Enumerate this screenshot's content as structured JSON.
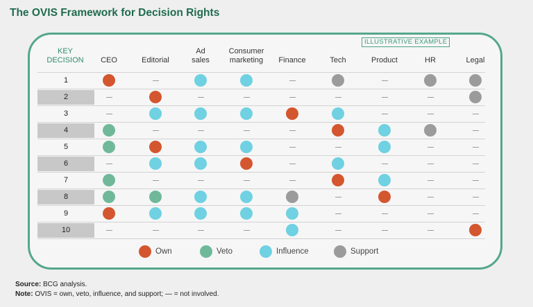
{
  "title": "The OVIS Framework for Decision Rights",
  "tag": "ILLUSTRATIVE EXAMPLE",
  "chart_data": {
    "type": "table",
    "row_header": [
      "KEY",
      "DECISION"
    ],
    "columns": [
      [
        "CEO"
      ],
      [
        "Editorial"
      ],
      [
        "Ad",
        "sales"
      ],
      [
        "Consumer",
        "marketing"
      ],
      [
        "Finance"
      ],
      [
        "Tech"
      ],
      [
        "Product"
      ],
      [
        "HR"
      ],
      [
        "Legal"
      ]
    ],
    "rows": [
      {
        "label": "1",
        "cells": [
          "own",
          "-",
          "influence",
          "influence",
          "-",
          "support",
          "-",
          "support",
          "support"
        ]
      },
      {
        "label": "2",
        "cells": [
          "-",
          "own",
          "-",
          "-",
          "-",
          "-",
          "-",
          "-",
          "support"
        ]
      },
      {
        "label": "3",
        "cells": [
          "-",
          "influence",
          "influence",
          "influence",
          "own",
          "influence",
          "-",
          "-",
          "-"
        ]
      },
      {
        "label": "4",
        "cells": [
          "veto",
          "-",
          "-",
          "-",
          "-",
          "own",
          "influence",
          "support",
          "-"
        ]
      },
      {
        "label": "5",
        "cells": [
          "veto",
          "own",
          "influence",
          "influence",
          "-",
          "-",
          "influence",
          "-",
          "-"
        ]
      },
      {
        "label": "6",
        "cells": [
          "-",
          "influence",
          "influence",
          "own",
          "-",
          "influence",
          "-",
          "-",
          "-"
        ]
      },
      {
        "label": "7",
        "cells": [
          "veto",
          "-",
          "-",
          "-",
          "-",
          "own",
          "influence",
          "-",
          "-"
        ]
      },
      {
        "label": "8",
        "cells": [
          "veto",
          "veto",
          "influence",
          "influence",
          "support",
          "-",
          "own",
          "-",
          "-"
        ]
      },
      {
        "label": "9",
        "cells": [
          "own",
          "influence",
          "influence",
          "influence",
          "influence",
          "-",
          "-",
          "-",
          "-"
        ]
      },
      {
        "label": "10",
        "cells": [
          "-",
          "-",
          "-",
          "-",
          "influence",
          "-",
          "-",
          "-",
          "own"
        ]
      }
    ],
    "legend": [
      {
        "key": "own",
        "label": "Own",
        "color": "#d4562e"
      },
      {
        "key": "veto",
        "label": "Veto",
        "color": "#6fb99a"
      },
      {
        "key": "influence",
        "label": "Influence",
        "color": "#6fd1e2"
      },
      {
        "key": "support",
        "label": "Support",
        "color": "#9b9b9b"
      }
    ],
    "shaded_rows": [
      "2",
      "4",
      "6",
      "8",
      "10"
    ]
  },
  "footer": {
    "source_label": "Source:",
    "source_text": "BCG analysis.",
    "note_label": "Note:",
    "note_text": "OVIS = own, veto, influence, and support; — = not involved."
  }
}
